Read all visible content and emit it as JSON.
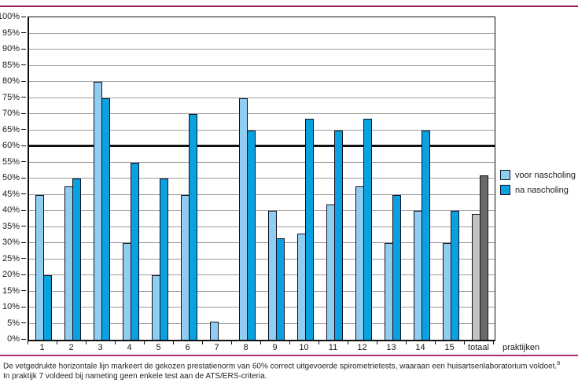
{
  "figure": {
    "accent_rule_color": "#981c62",
    "bottom_rule_color": "#a63272",
    "x_axis_title": "praktijken",
    "legend": [
      {
        "label": "voor nascholing",
        "color": "#8fcef0"
      },
      {
        "label": "na nascholing",
        "color": "#0aa1e0"
      }
    ],
    "caption": {
      "line1": "De vetgedrukte horizontale lijn markeert de gekozen prestatienorm van 60% correct uitgevoerde spirometrietests, waaraan een huisartsenlaboratorium voldoet.",
      "line1_sup": "8",
      "line2": "In praktijk 7 voldeed bij nameting geen enkele test aan de ATS/ERS-criteria."
    }
  },
  "chart_data": {
    "type": "bar",
    "title": "",
    "xlabel": "praktijken",
    "ylabel": "",
    "categories": [
      "1",
      "2",
      "3",
      "4",
      "5",
      "6",
      "7",
      "8",
      "9",
      "10",
      "11",
      "12",
      "13",
      "14",
      "15",
      "totaal"
    ],
    "series": [
      {
        "name": "voor nascholing",
        "color": "#8fcef0",
        "totaal_color": "#c2c2c2",
        "values": [
          45,
          47.5,
          80,
          30,
          20,
          45,
          5.5,
          75,
          40,
          33,
          42,
          47.5,
          30,
          40,
          30,
          39
        ]
      },
      {
        "name": "na nascholing",
        "color": "#0aa1e0",
        "totaal_color": "#696969",
        "values": [
          20,
          50,
          75,
          55,
          50,
          70,
          0,
          65,
          31.5,
          68.5,
          65,
          68.5,
          45,
          65,
          40,
          51
        ]
      }
    ],
    "ylim": [
      0,
      100
    ],
    "ytick_step": 5,
    "ytick_suffix": "%",
    "grid": true,
    "gridline_color": "#9c9c9c",
    "reference_line": {
      "value": 60,
      "color": "#111111"
    },
    "bar_border_color": "#101024",
    "legend_position": "right"
  }
}
